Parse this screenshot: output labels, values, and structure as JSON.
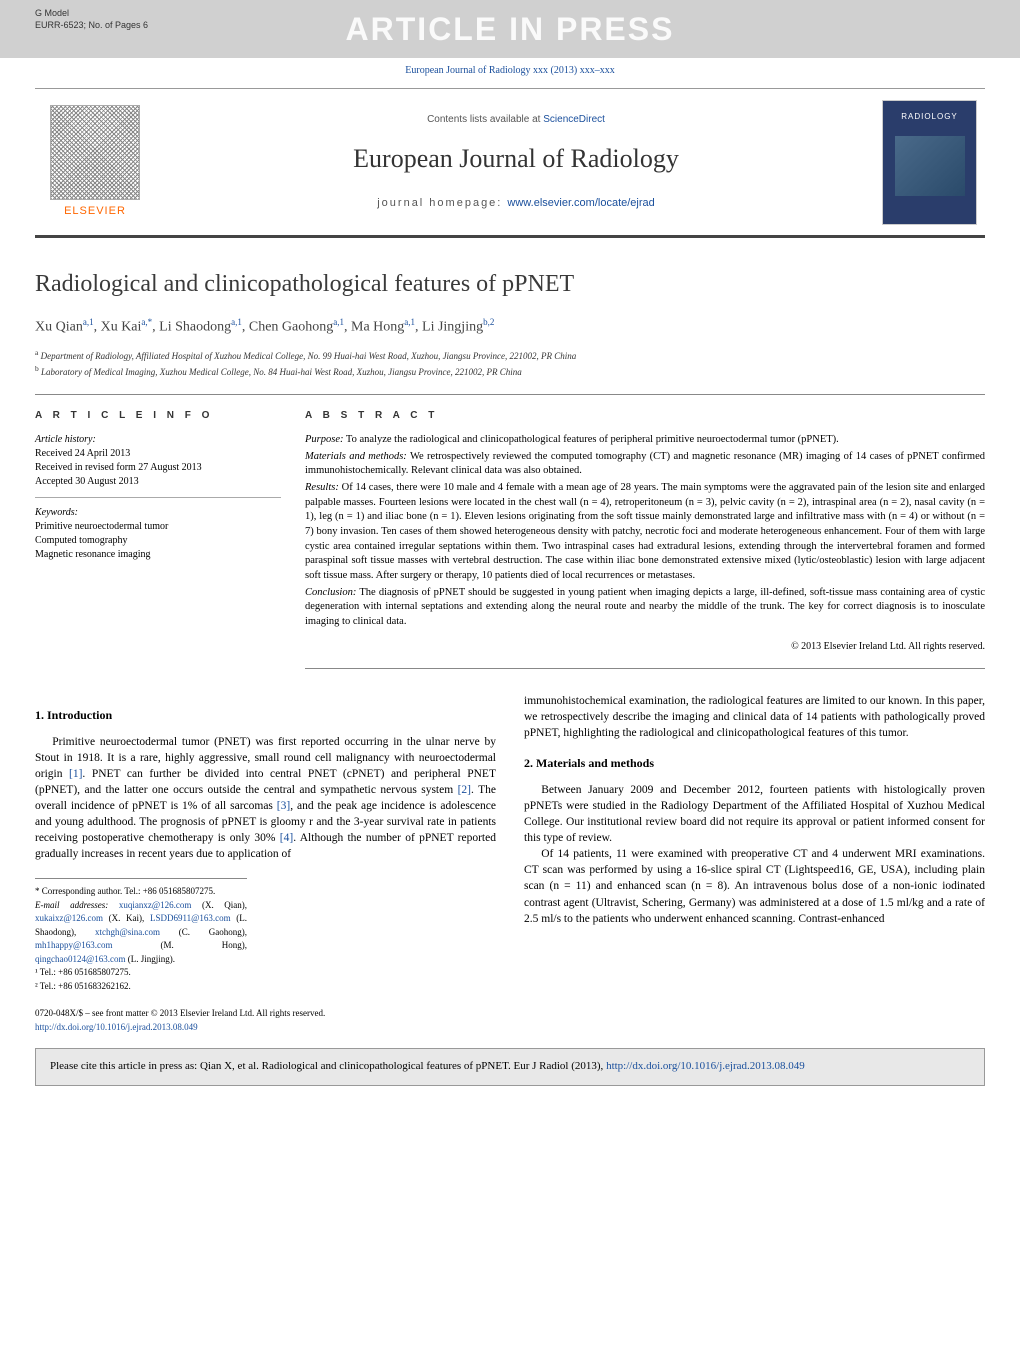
{
  "banner": {
    "gmodel": "G Model",
    "ref": "EURR-6523;   No. of Pages 6",
    "aip": "ARTICLE IN PRESS"
  },
  "citation_line": "European Journal of Radiology xxx (2013) xxx–xxx",
  "header": {
    "contents_prefix": "Contents lists available at ",
    "contents_link": "ScienceDirect",
    "journal_name": "European Journal of Radiology",
    "homepage_prefix": "journal homepage: ",
    "homepage_link": "www.elsevier.com/locate/ejrad",
    "elsevier": "ELSEVIER",
    "cover_label": "RADIOLOGY"
  },
  "title": "Radiological and clinicopathological features of pPNET",
  "authors_html": "Xu Qian<sup>a,1</sup>, Xu Kai<sup>a,*</sup>, Li Shaodong<sup>a,1</sup>, Chen Gaohong<sup>a,1</sup>, Ma Hong<sup>a,1</sup>, Li Jingjing<sup>b,2</sup>",
  "affiliations": {
    "a": "Department of Radiology, Affiliated Hospital of Xuzhou Medical College, No. 99 Huai-hai West Road, Xuzhou, Jiangsu Province, 221002, PR China",
    "b": "Laboratory of Medical Imaging, Xuzhou Medical College, No. 84 Huai-hai West Road, Xuzhou, Jiangsu Province, 221002, PR China"
  },
  "article_info": {
    "label": "A R T I C L E    I N F O",
    "history_head": "Article history:",
    "history": [
      "Received 24 April 2013",
      "Received in revised form 27 August 2013",
      "Accepted 30 August 2013"
    ],
    "keywords_head": "Keywords:",
    "keywords": [
      "Primitive neuroectodermal tumor",
      "Computed tomography",
      "Magnetic resonance imaging"
    ]
  },
  "abstract": {
    "label": "A B S T R A C T",
    "purpose_head": "Purpose:",
    "purpose": " To analyze the radiological and clinicopathological features of peripheral primitive neuroectodermal tumor (pPNET).",
    "methods_head": "Materials and methods:",
    "methods": " We retrospectively reviewed the computed tomography (CT) and magnetic resonance (MR) imaging of 14 cases of pPNET confirmed immunohistochemically. Relevant clinical data was also obtained.",
    "results_head": "Results:",
    "results": " Of 14 cases, there were 10 male and 4 female with a mean age of 28 years. The main symptoms were the aggravated pain of the lesion site and enlarged palpable masses. Fourteen lesions were located in the chest wall (n = 4), retroperitoneum (n = 3), pelvic cavity (n = 2), intraspinal area (n = 2), nasal cavity (n = 1), leg (n = 1) and iliac bone (n = 1). Eleven lesions originating from the soft tissue mainly demonstrated large and infiltrative mass with (n = 4) or without (n = 7) bony invasion. Ten cases of them showed heterogeneous density with patchy, necrotic foci and moderate heterogeneous enhancement. Four of them with large cystic area contained irregular septations within them. Two intraspinal cases had extradural lesions, extending through the intervertebral foramen and formed paraspinal soft tissue masses with vertebral destruction. The case within iliac bone demonstrated extensive mixed (lytic/osteoblastic) lesion with large adjacent soft tissue mass. After surgery or therapy, 10 patients died of local recurrences or metastases.",
    "conclusion_head": "Conclusion:",
    "conclusion": " The diagnosis of pPNET should be suggested in young patient when imaging depicts a large, ill-defined, soft-tissue mass containing area of cystic degeneration with internal septations and extending along the neural route and nearby the middle of the trunk. The key for correct diagnosis is to inosculate imaging to clinical data.",
    "copyright": "© 2013 Elsevier Ireland Ltd. All rights reserved."
  },
  "body": {
    "intro_head": "1.  Introduction",
    "intro_p1": "Primitive neuroectodermal tumor (PNET) was first reported occurring in the ulnar nerve by Stout in 1918. It is a rare, highly aggressive, small round cell malignancy with neuroectodermal origin [1]. PNET can further be divided into central PNET (cPNET) and peripheral PNET (pPNET), and the latter one occurs outside the central and sympathetic nervous system [2]. The overall incidence of pPNET is 1% of all sarcomas [3], and the peak age incidence is adolescence and young adulthood. The prognosis of pPNET is gloomy r and the 3-year survival rate in patients receiving postoperative chemotherapy is only 30% [4]. Although the number of pPNET reported gradually increases in recent years due to application of",
    "col2_p1": "immunohistochemical examination, the radiological features are limited to our known. In this paper, we retrospectively describe the imaging and clinical data of 14 patients with pathologically proved pPNET, highlighting the radiological and clinicopathological features of this tumor.",
    "mm_head": "2.  Materials and methods",
    "mm_p1": "Between January 2009 and December 2012, fourteen patients with histologically proven pPNETs were studied in the Radiology Department of the Affiliated Hospital of Xuzhou Medical College. Our institutional review board did not require its approval or patient informed consent for this type of review.",
    "mm_p2": "Of 14 patients, 11 were examined with preoperative CT and 4 underwent MRI examinations. CT scan was performed by using a 16-slice spiral CT (Lightspeed16, GE, USA), including plain scan (n = 11) and enhanced scan (n = 8). An intravenous bolus dose of a non-ionic iodinated contrast agent (Ultravist, Schering, Germany) was administered at a dose of 1.5 ml/kg and a rate of 2.5 ml/s to the patients who underwent enhanced scanning. Contrast-enhanced"
  },
  "footnotes": {
    "corr": "* Corresponding author. Tel.: +86 051685807275.",
    "email_head": "E-mail addresses: ",
    "emails": "xuqianxz@126.com (X. Qian), xukaixz@126.com (X. Kai), LSDD6911@163.com (L. Shaodong), xtchgh@sina.com (C. Gaohong), mh1happy@163.com (M. Hong), qingchao0124@163.com (L. Jingjing).",
    "n1": "¹ Tel.: +86 051685807275.",
    "n2": "² Tel.: +86 051683262162."
  },
  "bottom": {
    "line1": "0720-048X/$ – see front matter © 2013 Elsevier Ireland Ltd. All rights reserved.",
    "doi": "http://dx.doi.org/10.1016/j.ejrad.2013.08.049"
  },
  "citebox": {
    "text": "Please cite this article in press as: Qian X, et al. Radiological and clinicopathological features of pPNET. Eur J Radiol (2013), ",
    "link": "http://dx.doi.org/10.1016/j.ejrad.2013.08.049"
  },
  "colors": {
    "link": "#1a4f9c",
    "banner_bg": "#d0d0d0",
    "aip_text": "#fafafa",
    "citebox_bg": "#e8e8e8",
    "elsevier_orange": "#ff6600",
    "cover_bg": "#2a3d6b"
  },
  "typography": {
    "title_fontsize": 24,
    "journal_name_fontsize": 26,
    "body_fontsize": 11.5,
    "abstract_fontsize": 10.5
  }
}
